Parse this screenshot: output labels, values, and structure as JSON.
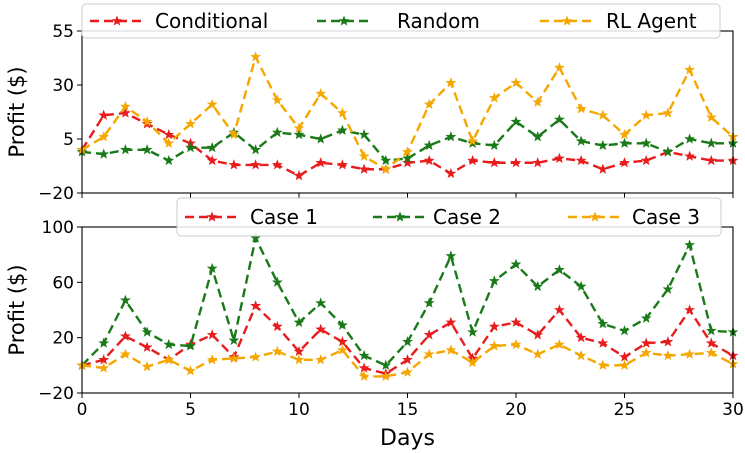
{
  "chart_data": [
    {
      "type": "line",
      "xlabel": "",
      "ylabel": "Profit ($)",
      "xlim": [
        0,
        30
      ],
      "ylim": [
        -20,
        55
      ],
      "yticks": [
        -20,
        5,
        30,
        55
      ],
      "xticks": [
        0,
        5,
        10,
        15,
        20,
        25,
        30
      ],
      "show_xtick_labels": false,
      "grid": false,
      "legend": "top, horizontal",
      "x": [
        0,
        1,
        2,
        3,
        4,
        5,
        6,
        7,
        8,
        9,
        10,
        11,
        12,
        13,
        14,
        15,
        16,
        17,
        18,
        19,
        20,
        21,
        22,
        23,
        24,
        25,
        26,
        27,
        28,
        29,
        30
      ],
      "series": [
        {
          "name": "Conditional",
          "color": "#e81c1c",
          "values": [
            0,
            16,
            17,
            12,
            7,
            3,
            -5,
            -7,
            -7,
            -7,
            -12,
            -6,
            -7,
            -9,
            -9,
            -6,
            -5,
            -11,
            -5,
            -6,
            -6,
            -6,
            -4,
            -5,
            -9,
            -6,
            -5,
            -1,
            -3,
            -5,
            -5
          ]
        },
        {
          "name": "Random",
          "color": "#1a7a1a",
          "values": [
            -1,
            -2,
            0,
            0,
            -5,
            1,
            1,
            8,
            0,
            8,
            7,
            5,
            9,
            7,
            -5,
            -4,
            2,
            6,
            3,
            2,
            13,
            6,
            14,
            4,
            2,
            3,
            3,
            -1,
            5,
            3,
            3
          ]
        },
        {
          "name": "RL Agent",
          "color": "#f5a700",
          "values": [
            0,
            6,
            20,
            13,
            3,
            12,
            21,
            7,
            43,
            23,
            10,
            26,
            17,
            -3,
            -9,
            -1,
            21,
            31,
            4,
            24,
            31,
            22,
            38,
            19,
            16,
            7,
            16,
            17,
            37,
            15,
            6
          ]
        }
      ]
    },
    {
      "type": "line",
      "xlabel": "Days",
      "ylabel": "Profit ($)",
      "xlim": [
        0,
        30
      ],
      "ylim": [
        -20,
        100
      ],
      "yticks": [
        -20,
        20,
        60,
        100
      ],
      "xticks": [
        0,
        5,
        10,
        15,
        20,
        25,
        30
      ],
      "show_xtick_labels": true,
      "grid": false,
      "legend": "top, horizontal",
      "x": [
        0,
        1,
        2,
        3,
        4,
        5,
        6,
        7,
        8,
        9,
        10,
        11,
        12,
        13,
        14,
        15,
        16,
        17,
        18,
        19,
        20,
        21,
        22,
        23,
        24,
        25,
        26,
        27,
        28,
        29,
        30
      ],
      "series": [
        {
          "name": "Case 1",
          "color": "#e81c1c",
          "values": [
            0,
            4,
            21,
            13,
            4,
            15,
            22,
            6,
            43,
            28,
            10,
            26,
            17,
            -2,
            -6,
            4,
            22,
            31,
            5,
            28,
            31,
            22,
            40,
            20,
            16,
            6,
            16,
            17,
            40,
            16,
            7
          ]
        },
        {
          "name": "Case 2",
          "color": "#1a7a1a",
          "values": [
            0,
            16,
            47,
            24,
            15,
            14,
            70,
            18,
            92,
            60,
            31,
            45,
            29,
            7,
            0,
            17,
            45,
            79,
            24,
            61,
            73,
            57,
            69,
            57,
            30,
            25,
            34,
            55,
            87,
            25,
            24
          ]
        },
        {
          "name": "Case 3",
          "color": "#f5a700",
          "values": [
            0,
            -2,
            8,
            -1,
            4,
            -4,
            4,
            5,
            6,
            10,
            4,
            4,
            11,
            -8,
            -8,
            -5,
            8,
            11,
            2,
            14,
            15,
            8,
            15,
            7,
            0,
            0,
            9,
            7,
            8,
            9,
            1
          ]
        }
      ]
    }
  ]
}
